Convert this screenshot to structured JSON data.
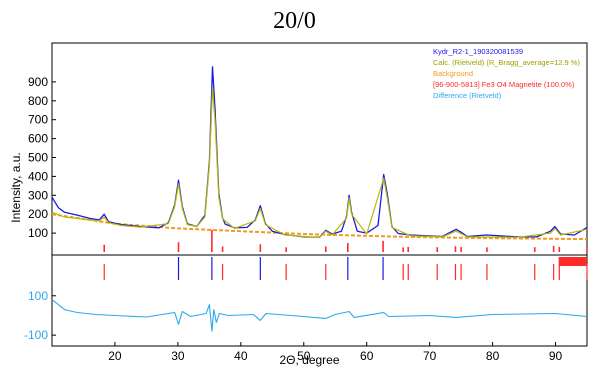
{
  "header": {
    "title": "20/0"
  },
  "chart_data": {
    "type": "line",
    "xlabel": "2Θ, degree",
    "ylabel": "Intensity, a.u.",
    "xlim": [
      10,
      95
    ],
    "ylim": [
      0,
      1000
    ],
    "x_ticks": [
      20,
      30,
      40,
      50,
      60,
      70,
      80,
      90
    ],
    "y_ticks": [
      100,
      200,
      300,
      400,
      500,
      600,
      700,
      800,
      900
    ],
    "diff_ticks": [
      100,
      -100
    ],
    "diff_ylim": [
      -150,
      170
    ],
    "legend_position": "top-right",
    "grid": false,
    "colors": {
      "observed": "#1a1ae6",
      "calculated": "#b8b800",
      "background": "#f39a1e",
      "magnetite": "#ff2a2a",
      "difference": "#2ea8f0",
      "diff_tick": "#2ea8f0",
      "axis": "#000000"
    },
    "legend": [
      {
        "label": "Kydr_R2-1_190320081539",
        "color": "#1a1ae6"
      },
      {
        "label": "Calc. (Rietveld) (R_Bragg_average=12.9 %)",
        "color": "#a0a000"
      },
      {
        "label": "Background",
        "color": "#f39a1e"
      },
      {
        "label": "[96-900-5813] Fe3 O4 Magnetite (100.0%)",
        "color": "#ff2a2a"
      },
      {
        "label": "Difference (Rietveld)",
        "color": "#2ea8f0"
      }
    ],
    "series": [
      {
        "name": "Kydr_R2-1_190320081539",
        "x": [
          10,
          11,
          12,
          14,
          16,
          17.5,
          18.3,
          19,
          21,
          24,
          27,
          28.5,
          29.5,
          30.1,
          30.7,
          31.5,
          33,
          34.3,
          35.0,
          35.5,
          35.9,
          36.5,
          37.1,
          37.5,
          39,
          41,
          42.3,
          43.1,
          43.9,
          45,
          47,
          50,
          52.5,
          53.5,
          54.5,
          56,
          56.8,
          57.2,
          57.6,
          58.5,
          60,
          61.8,
          62.7,
          63.3,
          64,
          65,
          67,
          70,
          72,
          74.2,
          75,
          76,
          79,
          84,
          87,
          89.2,
          89.9,
          90.8,
          93,
          95
        ],
        "y": [
          290,
          235,
          210,
          195,
          178,
          170,
          200,
          160,
          145,
          135,
          128,
          155,
          250,
          380,
          240,
          150,
          135,
          195,
          480,
          980,
          760,
          310,
          180,
          148,
          128,
          130,
          170,
          245,
          150,
          110,
          92,
          80,
          78,
          115,
          95,
          110,
          190,
          300,
          210,
          110,
          100,
          140,
          410,
          300,
          135,
          98,
          90,
          85,
          82,
          120,
          105,
          82,
          90,
          80,
          80,
          110,
          135,
          95,
          90,
          130
        ]
      },
      {
        "name": "Calc. (Rietveld) (R_Bragg_average=12.9 %)",
        "x": [
          10,
          12,
          16,
          17.5,
          18.3,
          19,
          21,
          24,
          28.5,
          29.5,
          30.1,
          30.7,
          31.5,
          33,
          34.3,
          35.0,
          35.5,
          35.9,
          36.5,
          37.1,
          39,
          42.3,
          43.1,
          43.9,
          47,
          52.5,
          53.5,
          54.5,
          56.8,
          57.2,
          57.6,
          60,
          62.7,
          63.3,
          64,
          67,
          72,
          74.2,
          76,
          84,
          89.2,
          89.9,
          90.8,
          95
        ],
        "y": [
          210,
          185,
          170,
          165,
          185,
          155,
          140,
          132,
          150,
          240,
          360,
          230,
          145,
          135,
          185,
          460,
          870,
          700,
          290,
          175,
          125,
          165,
          230,
          145,
          90,
          76,
          110,
          90,
          180,
          285,
          200,
          95,
          390,
          280,
          130,
          85,
          80,
          110,
          80,
          78,
          100,
          125,
          90,
          120
        ]
      },
      {
        "name": "Background",
        "x": [
          10,
          20,
          30,
          40,
          50,
          60,
          70,
          80,
          90,
          95
        ],
        "y": [
          200,
          150,
          125,
          110,
          95,
          85,
          78,
          73,
          70,
          68
        ]
      },
      {
        "name": "Difference (Rietveld)",
        "x": [
          10,
          11,
          12,
          14,
          17,
          20,
          25,
          29.5,
          30.1,
          30.7,
          32,
          34.5,
          35.0,
          35.4,
          35.7,
          36.1,
          36.6,
          38,
          42,
          43.1,
          44,
          48,
          53.5,
          55,
          57.2,
          58,
          62.7,
          63.5,
          70,
          74.2,
          80,
          90,
          95
        ],
        "y": [
          80,
          55,
          30,
          15,
          5,
          0,
          -8,
          15,
          -45,
          20,
          -5,
          10,
          55,
          -80,
          30,
          -35,
          10,
          0,
          5,
          -25,
          10,
          0,
          -15,
          5,
          20,
          -10,
          15,
          -5,
          0,
          -10,
          5,
          10,
          -5
        ]
      }
    ],
    "reflections": {
      "name": "[96-900-5813] Fe3 O4 Magnetite (100.0%)",
      "positions": [
        18.3,
        30.1,
        35.4,
        37.1,
        43.1,
        47.2,
        53.5,
        57.0,
        62.6,
        65.8,
        66.6,
        71.2,
        74.1,
        75.0,
        79.1,
        86.7,
        89.7,
        90.6,
        95.0
      ],
      "intensities": [
        180,
        320,
        1000,
        80,
        210,
        40,
        90,
        280,
        400,
        30,
        60,
        45,
        100,
        50,
        35,
        45,
        120,
        60,
        40
      ]
    }
  }
}
